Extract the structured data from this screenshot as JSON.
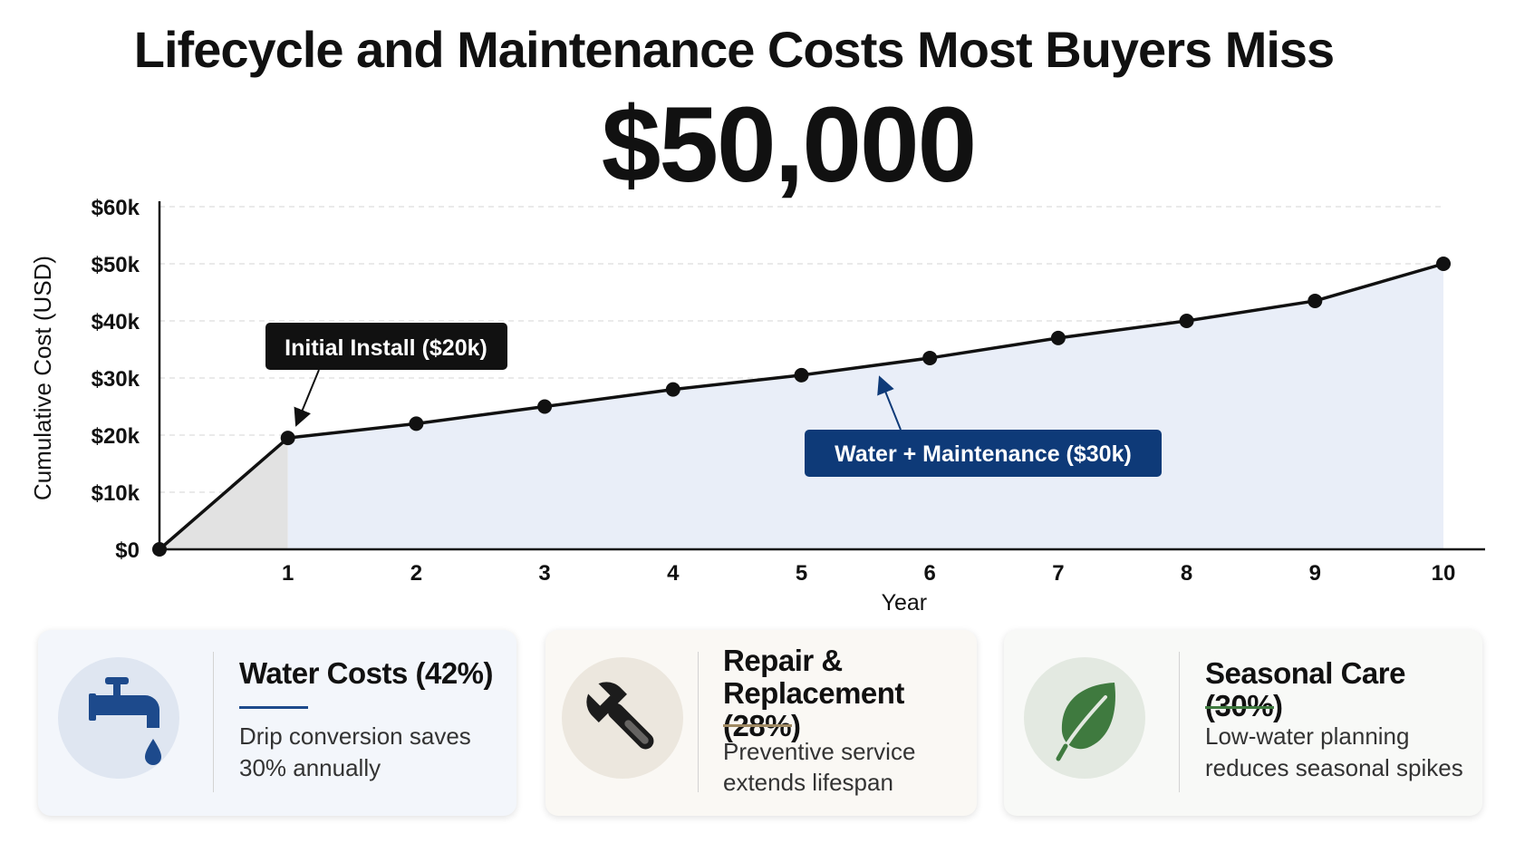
{
  "title": "Lifecycle and Maintenance Costs Most Buyers Miss",
  "total": "$50,000",
  "colors": {
    "line": "#111111",
    "install_fill": "#e2e2e2",
    "area_fill": "#e9eef8",
    "callout_dark": "#111111",
    "callout_blue": "#0e3a78",
    "water_accent": "#1d4a8c",
    "repair_accent": "#a08a63",
    "seasonal_accent": "#3f7a3f"
  },
  "chart_data": {
    "type": "line",
    "title": "",
    "xlabel": "Year",
    "ylabel": "Cumulative Cost (USD)",
    "x": [
      0,
      1,
      2,
      3,
      4,
      5,
      6,
      7,
      8,
      9,
      10
    ],
    "series": [
      {
        "values": [
          0,
          19.5,
          22,
          25,
          28,
          30.5,
          33.5,
          37,
          40,
          43.5,
          50
        ]
      }
    ],
    "x_ticks": [
      "1",
      "2",
      "3",
      "4",
      "5",
      "6",
      "7",
      "8",
      "9",
      "10"
    ],
    "y_ticks": [
      "$0",
      "$10k",
      "$20k",
      "$30k",
      "$40k",
      "$50k",
      "$60k"
    ],
    "ylim": [
      0,
      60
    ],
    "xlim": [
      0,
      10
    ],
    "grid": "horizontal dashed",
    "unit": "thousand USD",
    "annotations": [
      {
        "text": "Initial Install ($20k)",
        "points_to": [
          1,
          19.5
        ]
      },
      {
        "text": "Water + Maintenance ($30k)",
        "points_to": [
          5.6,
          30
        ]
      }
    ],
    "shaded_regions": [
      {
        "name": "install",
        "x_range": [
          0,
          1
        ]
      },
      {
        "name": "water-maintenance",
        "x_range": [
          1,
          10
        ]
      }
    ]
  },
  "cards": [
    {
      "title": "Water Costs (42%)",
      "desc_line1": "Drip conversion saves",
      "desc_line2": "30% annually",
      "icon": "faucet-icon"
    },
    {
      "title_line1": "Repair &",
      "title_line2": "Replacement (28%)",
      "desc_line1": "Preventive service",
      "desc_line2": "extends lifespan",
      "icon": "wrench-icon"
    },
    {
      "title": "Seasonal Care (30%)",
      "desc_line1": "Low-water planning",
      "desc_line2": "reduces seasonal spikes",
      "icon": "leaf-icon"
    }
  ]
}
